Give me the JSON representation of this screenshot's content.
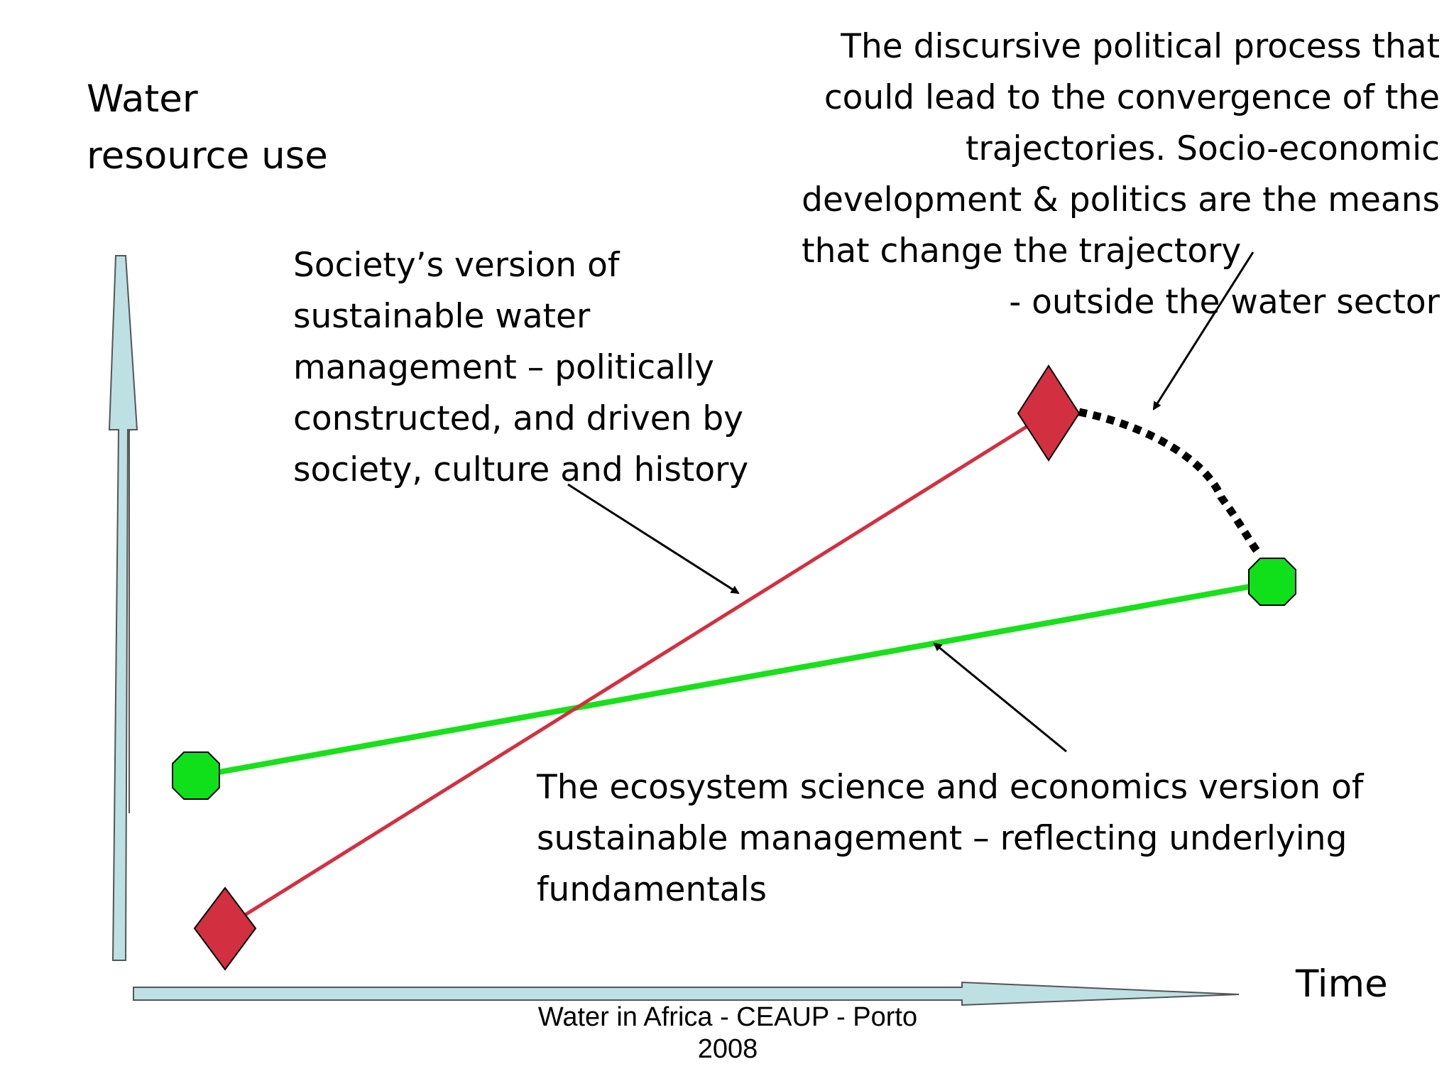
{
  "axes": {
    "y_label_lines": [
      "Water",
      "resource use"
    ],
    "x_label": "Time"
  },
  "annotations": {
    "political_lines": [
      "The discursive political process that",
      "could lead to the convergence of the",
      "trajectories. Socio-economic",
      "development & politics are the means",
      "that change the trajectory",
      "- outside the water sector"
    ],
    "society_lines": [
      "Society’s version of",
      "sustainable water",
      "management – politically",
      "constructed, and driven by",
      "society, culture and history"
    ],
    "ecosystem_lines": [
      "The ecosystem science and economics version of",
      "sustainable management – reflecting underlying",
      "fundamentals"
    ]
  },
  "footer_lines": [
    "Water in Africa - CEAUP - Porto",
    "2008"
  ],
  "colors": {
    "society_line": "#d23040",
    "ecosystem_line": "#19e01b",
    "diamond_fill": "#d23040",
    "octagon_fill": "#0fe01a",
    "axis_fill": "#bde0e3",
    "arrow": "#000000"
  },
  "markers": {
    "start_diamond": "diamond-marker",
    "end_diamond": "diamond-marker",
    "start_octagon": "octagon-marker",
    "end_octagon": "octagon-marker"
  }
}
